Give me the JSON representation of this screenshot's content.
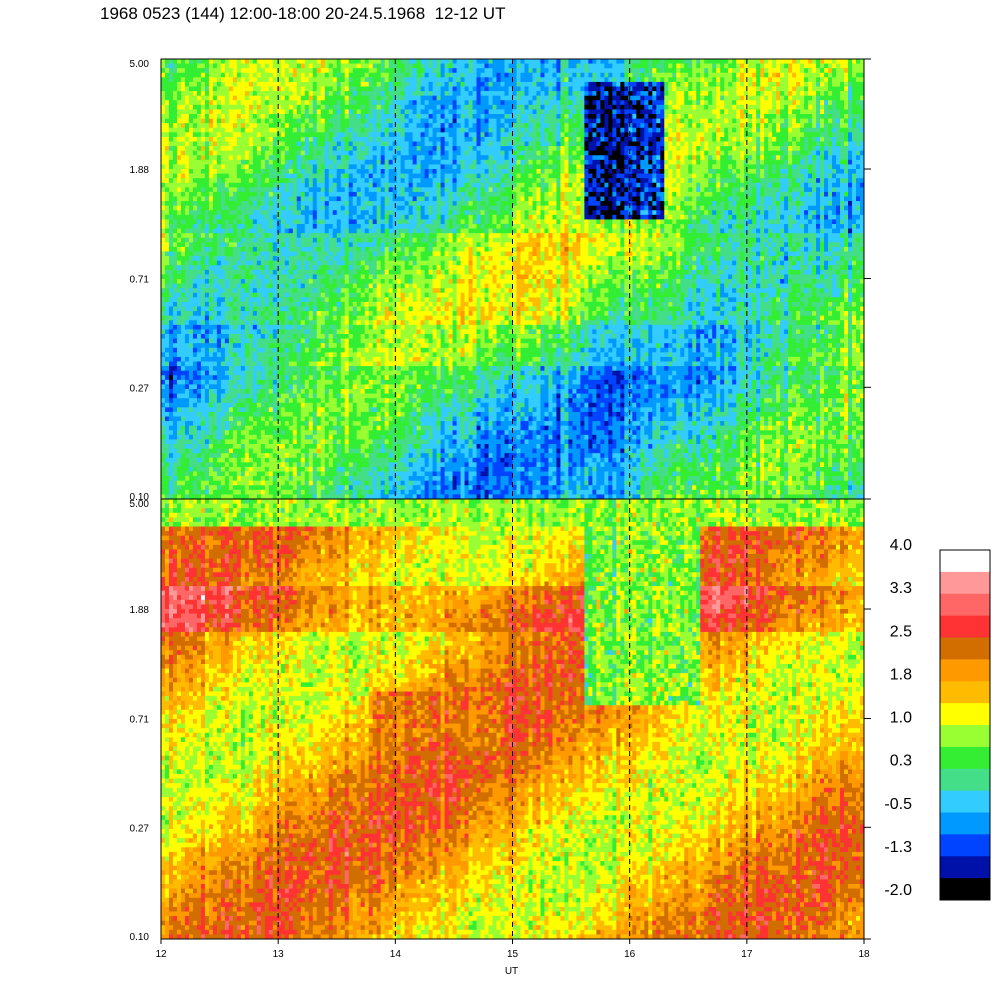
{
  "title": "1968 0523 (144) 12:00-18:00 20-24.5.1968  12-12 UT",
  "chart_data": [
    {
      "type": "heatmap",
      "name": "panel-top",
      "x_range": [
        12,
        18
      ],
      "y_ticks": [
        "5.00",
        "1.88",
        "0.71",
        "0.27",
        "0.10"
      ],
      "y_range": [
        0.1,
        5.0
      ],
      "y_scale": "log",
      "dominant_level_range": [
        -0.5,
        1.0
      ],
      "features": {
        "low_region": {
          "x": [
            15.6,
            16.3
          ],
          "y": [
            1.2,
            4.0
          ],
          "level": -1.3
        }
      }
    },
    {
      "type": "heatmap",
      "name": "panel-bottom",
      "x_range": [
        12,
        18
      ],
      "y_ticks": [
        "5.00",
        "1.88",
        "0.71",
        "0.27",
        "0.10"
      ],
      "y_range": [
        0.1,
        5.0
      ],
      "y_scale": "log",
      "dominant_level_range": [
        1.0,
        2.5
      ],
      "features": {
        "high_region": {
          "x": [
            13.8,
            14.9
          ],
          "y": [
            0.55,
            0.9
          ],
          "level": 2.5
        },
        "low_region": {
          "x": [
            15.6,
            16.6
          ],
          "y": [
            0.8,
            4.5
          ],
          "level": 0.3
        }
      }
    }
  ],
  "x_axis": {
    "label": "UT",
    "ticks": [
      "12",
      "13",
      "14",
      "15",
      "16",
      "17",
      "18"
    ],
    "dashed_lines_at": [
      13,
      14,
      15,
      16,
      17
    ]
  },
  "colorbar": {
    "labels": [
      "4.0",
      "3.3",
      "2.5",
      "1.8",
      "1.0",
      "0.3",
      "-0.5",
      "-1.3",
      "-2.0"
    ],
    "colors_top_to_bottom": [
      "#ffffff",
      "#ff9999",
      "#ff6666",
      "#ff3333",
      "#d26e00",
      "#ff9900",
      "#ffbb00",
      "#ffff00",
      "#99ff33",
      "#33ee33",
      "#44dd88",
      "#33ccff",
      "#0099ff",
      "#0044ff",
      "#0011aa",
      "#000000"
    ]
  }
}
